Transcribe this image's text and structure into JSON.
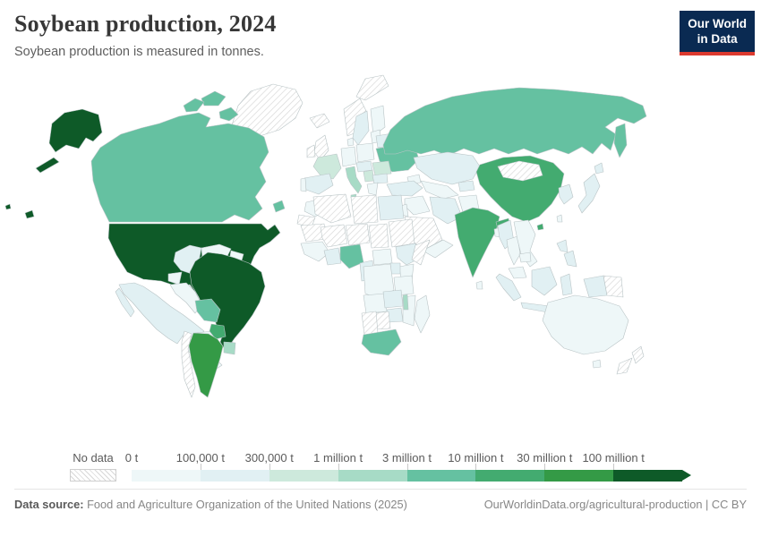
{
  "header": {
    "title": "Soybean production, 2024",
    "subtitle": "Soybean production is measured in tonnes."
  },
  "logo": {
    "line1": "Our World",
    "line2": "in Data",
    "bg_color": "#0a2a52",
    "accent_color": "#dc3a2f"
  },
  "footer": {
    "source_label": "Data source:",
    "source_text": "Food and Agriculture Organization of the United Nations (2025)",
    "right_text": "OurWorldinData.org/agricultural-production | CC BY"
  },
  "chart_data": {
    "type": "choropleth_map",
    "title": "Soybean production, 2024",
    "unit": "tonnes",
    "projection": "world",
    "legend": {
      "no_data_label": "No data",
      "bins": [
        {
          "id": "b0",
          "label": "0 t",
          "color": "#eef7f8"
        },
        {
          "id": "b1",
          "label": "100,000 t",
          "color": "#e1f0f3"
        },
        {
          "id": "b2",
          "label": "300,000 t",
          "color": "#cde9dc"
        },
        {
          "id": "b3",
          "label": "1 million t",
          "color": "#a7dbc6"
        },
        {
          "id": "b4",
          "label": "3 million t",
          "color": "#65c1a1"
        },
        {
          "id": "b5",
          "label": "10 million t",
          "color": "#43ab70"
        },
        {
          "id": "b6",
          "label": "30 million t",
          "color": "#349a46"
        },
        {
          "id": "b7",
          "label": "100 million t",
          "color": "#0e5a28"
        }
      ]
    },
    "countries": {
      "united-states": "b7",
      "brazil": "b7",
      "argentina": "b6",
      "china": "b5",
      "india": "b5",
      "paraguay": "b5",
      "canada": "b4",
      "russia": "b4",
      "ukraine": "b4",
      "bolivia": "b4",
      "nigeria": "b4",
      "south-africa": "b4",
      "uruguay": "b3",
      "italy": "b3",
      "malawi": "b3",
      "france": "b2",
      "romania": "b2",
      "serbia": "b2",
      "mexico": "b1",
      "colombia": "b1",
      "spain": "b1",
      "sweden": "b1",
      "belarus": "b1",
      "kazakhstan": "b1",
      "kyrgyzstan": "b1",
      "turkey": "b1",
      "iran": "b1",
      "pakistan": "b1",
      "egypt": "b1",
      "ethiopia": "b1",
      "uganda": "b1",
      "zambia": "b1",
      "zimbabwe": "b1",
      "ghana": "b1",
      "cameroon": "b1",
      "myanmar": "b1",
      "korea": "b1",
      "japan": "b1",
      "indonesia": "b1",
      "philippines": "b1",
      "bulgaria": "b1",
      "hungary": "b1",
      "peru": "b0",
      "venezuela": "b0",
      "ecuador": "b0",
      "guyana": "b0",
      "central-america": "b0",
      "cuba": "b0",
      "hispaniola": "b0",
      "germany": "b0",
      "poland": "b0",
      "finland": "b0",
      "denmark": "b0",
      "greece": "b0",
      "portugal": "b0",
      "baltics": "b0",
      "morocco": "b0",
      "senegal": "b0",
      "central-african-republic": "b0",
      "dr-congo": "b0",
      "kenya": "b0",
      "tanzania": "b0",
      "angola": "b0",
      "mozambique": "b0",
      "madagascar": "b0",
      "australia": "b0",
      "tasmania": "b0",
      "thailand": "b0",
      "vietnam": "b0",
      "cambodia": "b0",
      "malaysia": "b0",
      "sri-lanka": "b0",
      "taiwan": "b0",
      "afghanistan": "b0",
      "iraq": "b0",
      "jordan": "b0",
      "yemen": "b0",
      "caucasus": "b0",
      "uzbekistan": "b0",
      "bangladesh": "b0",
      "greenland": "nd",
      "svalbard": "nd",
      "iceland": "nd",
      "norway": "nd",
      "united-kingdom": "nd",
      "ireland": "nd",
      "chile": "nd",
      "algeria": "nd",
      "libya": "nd",
      "western-sahara": "nd",
      "mauritania": "nd",
      "mali": "nd",
      "niger": "nd",
      "chad": "nd",
      "sudan": "nd",
      "somalia": "nd",
      "saudi-arabia": "nd",
      "mongolia": "nd",
      "botswana": "nd",
      "namibia": "nd",
      "papua-new-guinea": "nd",
      "new-zealand": "nd"
    }
  }
}
